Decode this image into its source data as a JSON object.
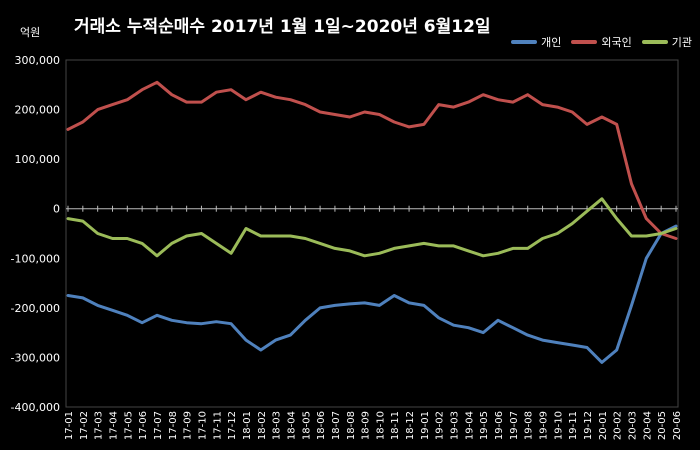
{
  "chart_data": {
    "type": "line",
    "title": "거래소 누적순매수 2017년 1월 1일~2020년 6월12일",
    "unit": "억원",
    "ylim": [
      -400000,
      300000
    ],
    "ytick_step": 100000,
    "ytick_labels": [
      "300,000",
      "200,000",
      "100,000",
      "0",
      "-100,000",
      "-200,000",
      "-300,000",
      "-400,000"
    ],
    "x": [
      "17-01",
      "17-02",
      "17-03",
      "17-04",
      "17-05",
      "17-06",
      "17-07",
      "17-08",
      "17-09",
      "17-10",
      "17-11",
      "17-12",
      "18-01",
      "18-02",
      "18-03",
      "18-04",
      "18-05",
      "18-06",
      "18-07",
      "18-08",
      "18-09",
      "18-10",
      "18-11",
      "18-12",
      "19-01",
      "19-02",
      "19-03",
      "19-04",
      "19-05",
      "19-06",
      "19-07",
      "19-08",
      "19-09",
      "19-10",
      "19-11",
      "19-12",
      "20-01",
      "20-02",
      "20-03",
      "20-04",
      "20-05",
      "20-06"
    ],
    "legend_position": "top-right",
    "grid": false,
    "series": [
      {
        "name": "개인",
        "color": "#4f81bd",
        "values": [
          -175000,
          -180000,
          -195000,
          -205000,
          -215000,
          -230000,
          -215000,
          -225000,
          -230000,
          -232000,
          -228000,
          -232000,
          -265000,
          -285000,
          -265000,
          -255000,
          -225000,
          -200000,
          -195000,
          -192000,
          -190000,
          -195000,
          -175000,
          -190000,
          -195000,
          -220000,
          -235000,
          -240000,
          -250000,
          -225000,
          -240000,
          -255000,
          -265000,
          -270000,
          -275000,
          -280000,
          -310000,
          -285000,
          -195000,
          -100000,
          -50000,
          -35000
        ]
      },
      {
        "name": "외국인",
        "color": "#c0504d",
        "values": [
          160000,
          175000,
          200000,
          210000,
          220000,
          240000,
          255000,
          230000,
          215000,
          215000,
          235000,
          240000,
          220000,
          235000,
          225000,
          220000,
          210000,
          195000,
          190000,
          185000,
          195000,
          190000,
          175000,
          165000,
          170000,
          210000,
          205000,
          215000,
          230000,
          220000,
          215000,
          230000,
          210000,
          205000,
          195000,
          170000,
          185000,
          170000,
          50000,
          -20000,
          -50000,
          -60000
        ]
      },
      {
        "name": "기관",
        "color": "#9bbb59",
        "values": [
          -20000,
          -25000,
          -50000,
          -60000,
          -60000,
          -70000,
          -95000,
          -70000,
          -55000,
          -50000,
          -70000,
          -90000,
          -40000,
          -55000,
          -55000,
          -55000,
          -60000,
          -70000,
          -80000,
          -85000,
          -95000,
          -90000,
          -80000,
          -75000,
          -70000,
          -75000,
          -75000,
          -85000,
          -95000,
          -90000,
          -80000,
          -80000,
          -60000,
          -50000,
          -30000,
          -5000,
          20000,
          -20000,
          -55000,
          -55000,
          -50000,
          -40000
        ]
      }
    ]
  }
}
